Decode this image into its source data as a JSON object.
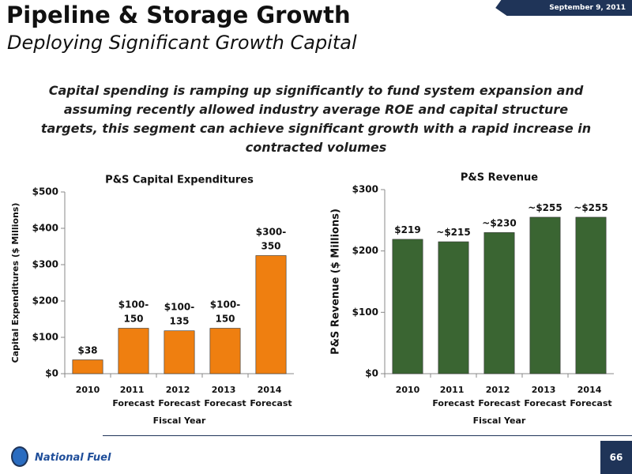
{
  "slide": {
    "title": "Pipeline & Storage Growth",
    "subtitle": "Deploying Significant Growth Capital",
    "date": "September  9, 2011",
    "body": "Capital spending is ramping up significantly to fund system expansion and assuming recently allowed industry average ROE and capital structure targets, this segment can achieve significant growth with a rapid increase in contracted volumes",
    "logo": "National Fuel",
    "page": "66"
  },
  "chart_data": [
    {
      "type": "bar",
      "title": "P&S Capital Expenditures",
      "y_label": "Capital Expenditures ($ Millions)",
      "x_label": "Fiscal Year",
      "categories": [
        "2010",
        "2011 Forecast",
        "2012 Forecast",
        "2013 Forecast",
        "2014 Forecast"
      ],
      "values": [
        38,
        125,
        118,
        125,
        325
      ],
      "value_labels": [
        "$38",
        "$100-150",
        "$100-135",
        "$100-150",
        "$300-350"
      ],
      "color": "#ef7f10",
      "ylim": [
        0,
        500
      ],
      "yticks": [
        {
          "value": 0,
          "label": "$0"
        },
        {
          "value": 100,
          "label": "$100"
        },
        {
          "value": 200,
          "label": "$200"
        },
        {
          "value": 300,
          "label": "$300"
        },
        {
          "value": 400,
          "label": "$400"
        },
        {
          "value": 500,
          "label": "$500"
        }
      ]
    },
    {
      "type": "bar",
      "title": "P&S Revenue",
      "y_label": "P&S Revenue ($ Millions)",
      "x_label": "Fiscal Year",
      "categories": [
        "2010",
        "2011 Forecast",
        "2012 Forecast",
        "2013 Forecast",
        "2014 Forecast"
      ],
      "values": [
        219,
        215,
        230,
        255,
        255
      ],
      "value_labels": [
        "$219",
        "~$215",
        "~$230",
        "~$255",
        "~$255"
      ],
      "color": "#3a6532",
      "ylim": [
        0,
        300
      ],
      "yticks": [
        {
          "value": 0,
          "label": "$0"
        },
        {
          "value": 100,
          "label": "$100"
        },
        {
          "value": 200,
          "label": "$200"
        },
        {
          "value": 300,
          "label": "$300"
        }
      ]
    }
  ]
}
